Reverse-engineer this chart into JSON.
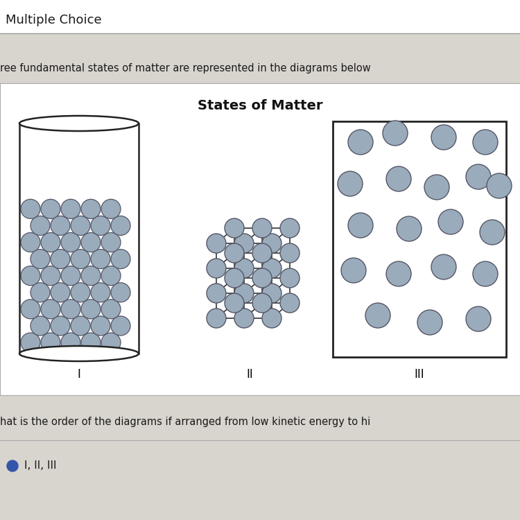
{
  "title": "States of Matter",
  "header_text": "Multiple Choice",
  "question_text": "ree fundamental states of matter are represented in the diagrams below",
  "question_text2": "hat is the order of the diagrams if arranged from low kinetic energy to hi",
  "answer_text": "I, II, III",
  "bg_color": "#d8d4ce",
  "diagram_area_bg": "#e8e4de",
  "white_panel_bg": "#ffffff",
  "particle_fill": "#9aacbc",
  "particle_edge": "#555566",
  "line_color": "#222222",
  "label_I": "I",
  "label_II": "II",
  "label_III": "III"
}
